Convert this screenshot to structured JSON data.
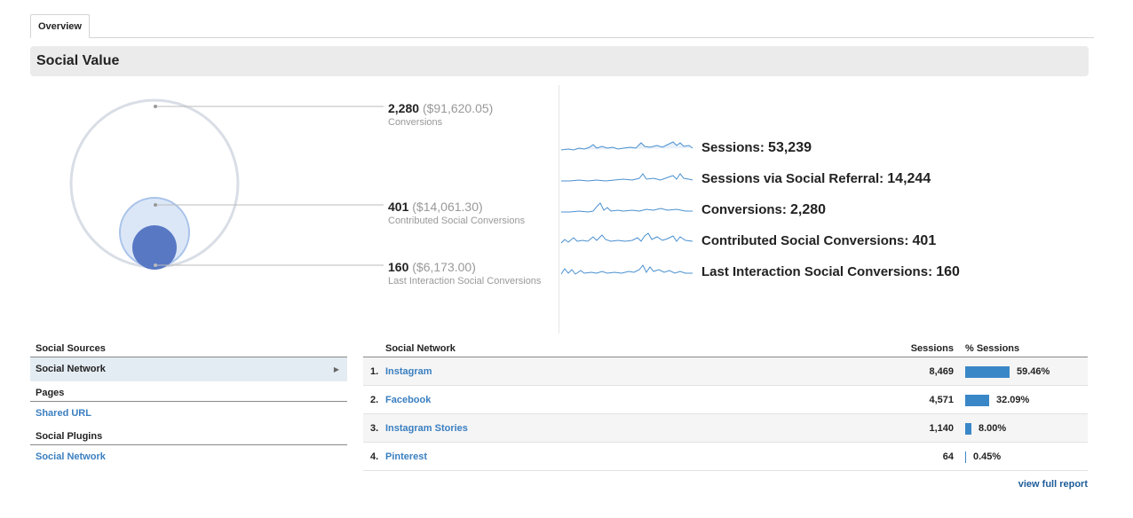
{
  "tabs": [
    {
      "label": "Overview"
    }
  ],
  "section_title": "Social Value",
  "callouts": [
    {
      "value": "2,280",
      "money": "($91,620.05)",
      "label": "Conversions"
    },
    {
      "value": "401",
      "money": "($14,061.30)",
      "label": "Contributed Social Conversions"
    },
    {
      "value": "160",
      "money": "($6,173.00)",
      "label": "Last Interaction Social Conversions"
    }
  ],
  "metrics": [
    {
      "label": "Sessions:",
      "value": "53,239"
    },
    {
      "label": "Sessions via Social Referral:",
      "value": "14,244"
    },
    {
      "label": "Conversions:",
      "value": "2,280"
    },
    {
      "label": "Contributed Social Conversions:",
      "value": "401"
    },
    {
      "label": "Last Interaction Social Conversions:",
      "value": "160"
    }
  ],
  "left_nav": {
    "groups": [
      {
        "title": "Social Sources",
        "items": [
          {
            "label": "Social Network",
            "selected": true
          }
        ]
      },
      {
        "title": "Pages",
        "items": [
          {
            "label": "Shared URL",
            "selected": false
          }
        ]
      },
      {
        "title": "Social Plugins",
        "items": [
          {
            "label": "Social Network",
            "selected": false
          }
        ]
      }
    ]
  },
  "table": {
    "headers": {
      "network": "Social Network",
      "sessions": "Sessions",
      "pct": "% Sessions"
    },
    "rows": [
      {
        "idx": "1.",
        "name": "Instagram",
        "sessions": "8,469",
        "pct": "59.46%",
        "share": 0.5946
      },
      {
        "idx": "2.",
        "name": "Facebook",
        "sessions": "4,571",
        "pct": "32.09%",
        "share": 0.3209
      },
      {
        "idx": "3.",
        "name": "Instagram Stories",
        "sessions": "1,140",
        "pct": "8.00%",
        "share": 0.08
      },
      {
        "idx": "4.",
        "name": "Pinterest",
        "sessions": "64",
        "pct": "0.45%",
        "share": 0.0045
      }
    ]
  },
  "view_full_report": "view full report",
  "colors": {
    "accent": "#3a87c8",
    "link": "#3a7fc1",
    "circle_outer": "#d9dee6",
    "circle_mid": "#aac4e8",
    "circle_inner": "#5b7fc4"
  }
}
